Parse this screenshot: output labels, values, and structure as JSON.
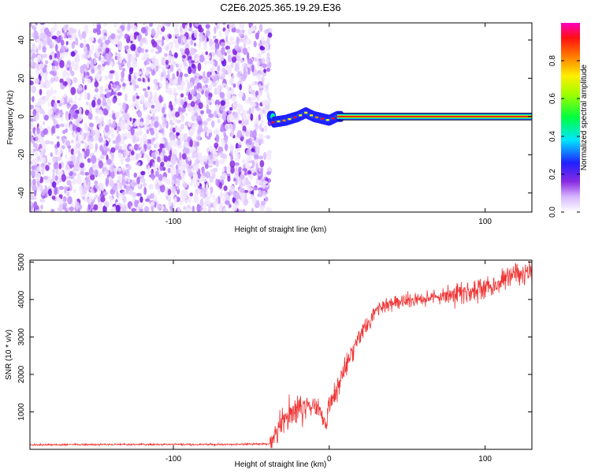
{
  "title": "C2E6.2025.365.19.29.E36",
  "chart_data": [
    {
      "type": "heatmap",
      "xlabel": "Height of straight line (km)",
      "ylabel": "Frequency (Hz)",
      "xlim": [
        -192,
        130
      ],
      "ylim": [
        -50,
        49
      ],
      "x_ticks": [
        -100,
        0,
        100
      ],
      "x_tick_labels": [
        "-100",
        "",
        "100"
      ],
      "y_ticks": [
        -40,
        -20,
        0,
        20,
        40
      ],
      "y_tick_labels": [
        "-40",
        "-20",
        "0",
        "20",
        "40"
      ],
      "colorbar": {
        "label": "Normalized spectral amplitude",
        "range": [
          0,
          1
        ],
        "ticks": [
          0,
          0.2,
          0.4,
          0.6,
          0.8
        ],
        "tick_labels": [
          "0.0",
          "0.2",
          "0.4",
          "0.6",
          "0.8"
        ],
        "colormap": "rainbow"
      },
      "regions": [
        {
          "name": "noise",
          "x_range": [
            -192,
            -38
          ],
          "freq_range": [
            -50,
            49
          ],
          "amplitude_range": [
            0.0,
            0.15
          ]
        },
        {
          "name": "signal",
          "x_range": [
            -38,
            130
          ],
          "freq_center": [
            [
              -36,
              -3
            ],
            [
              -28,
              -2
            ],
            [
              -20,
              0
            ],
            [
              -15,
              2
            ],
            [
              -10,
              0
            ],
            [
              -5,
              -1
            ],
            [
              0,
              -2
            ],
            [
              5,
              0
            ],
            [
              130,
              0
            ]
          ],
          "amplitude_peak": 0.95
        }
      ],
      "grid": false
    },
    {
      "type": "line",
      "xlabel": "Height of straight line (km)",
      "ylabel": "SNR (10 * v/v)",
      "xlim": [
        -192,
        130
      ],
      "ylim": [
        0,
        5050
      ],
      "x_ticks": [
        -100,
        0,
        100
      ],
      "x_tick_labels": [
        "-100",
        "0",
        "100"
      ],
      "y_ticks": [
        1000,
        2000,
        3000,
        4000,
        5000
      ],
      "y_tick_labels": [
        "1000",
        "2000",
        "3000",
        "4000",
        "5000"
      ],
      "color": "#ef3333",
      "x": [
        -192,
        -150,
        -100,
        -60,
        -38,
        -32,
        -25,
        -18,
        -10,
        -5,
        -2,
        0,
        5,
        10,
        15,
        20,
        25,
        30,
        40,
        50,
        60,
        70,
        80,
        90,
        100,
        110,
        120,
        130
      ],
      "y": [
        120,
        130,
        130,
        130,
        150,
        550,
        1000,
        1100,
        1200,
        1000,
        450,
        1200,
        1600,
        2200,
        2700,
        3100,
        3400,
        3700,
        3900,
        3950,
        4050,
        4100,
        4150,
        4200,
        4300,
        4450,
        4700,
        4700
      ],
      "grid": false
    }
  ]
}
